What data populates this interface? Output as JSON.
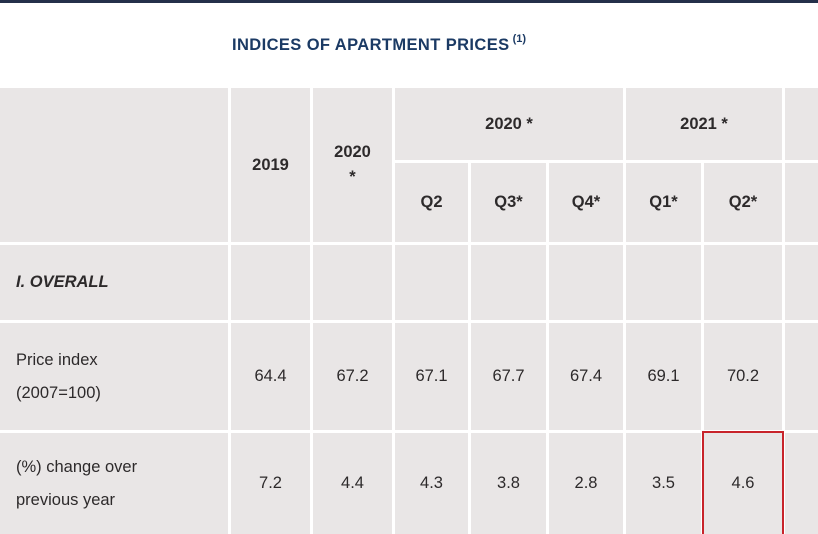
{
  "title": {
    "text": "INDICES OF APARTMENT PRICES",
    "superscript": "(1)"
  },
  "table": {
    "headers": {
      "year_2019": "2019",
      "year_2020_line1": "2020",
      "year_2020_line2": "*",
      "group_2020": "2020 *",
      "group_2021": "2021 *",
      "quarters": [
        "Q2",
        "Q3*",
        "Q4*",
        "Q1*",
        "Q2*"
      ]
    },
    "section_title": "I. OVERALL",
    "rows": [
      {
        "label": "Price index (2007=100)",
        "values": [
          "64.4",
          "67.2",
          "67.1",
          "67.7",
          "67.4",
          "69.1",
          "70.2"
        ]
      },
      {
        "label": "(%) change over previous year",
        "values": [
          "7.2",
          "4.4",
          "4.3",
          "3.8",
          "2.8",
          "3.5",
          "4.6"
        ]
      }
    ]
  },
  "chart_data": {
    "type": "table",
    "title": "INDICES OF APARTMENT PRICES (1)",
    "columns": [
      "",
      "2019",
      "2020 *",
      "Q2",
      "Q3*",
      "Q4*",
      "Q1*",
      "Q2*"
    ],
    "column_groups": [
      {
        "label": "2020 *",
        "spans": [
          "Q2",
          "Q3*",
          "Q4*"
        ]
      },
      {
        "label": "2021 *",
        "spans": [
          "Q1*",
          "Q2*"
        ]
      }
    ],
    "sections": [
      {
        "section": "I. OVERALL",
        "rows": [
          {
            "label": "Price index (2007=100)",
            "values": [
              64.4,
              67.2,
              67.1,
              67.7,
              67.4,
              69.1,
              70.2
            ]
          },
          {
            "label": "(%) change over previous year",
            "values": [
              7.2,
              4.4,
              4.3,
              3.8,
              2.8,
              3.5,
              4.6
            ],
            "highlighted_cell": {
              "column": "Q2* 2021",
              "value": 4.6
            }
          }
        ]
      }
    ]
  },
  "colors": {
    "accent_navy": "#1b3a64",
    "cell_gray": "#e9e6e6",
    "highlight_red": "#c8242b",
    "top_bar": "#24304a"
  }
}
